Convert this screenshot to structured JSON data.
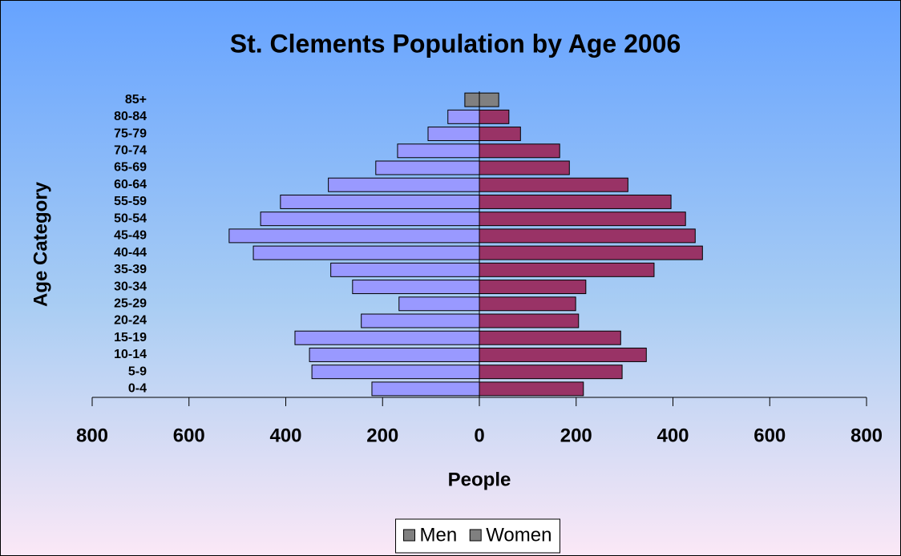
{
  "chart_data": {
    "type": "pyramid",
    "title": "St. Clements Population by Age 2006",
    "x_label": "People",
    "y_label": "Age Category",
    "categories": [
      "0-4",
      "5-9",
      "10-14",
      "15-19",
      "20-24",
      "25-29",
      "30-34",
      "35-39",
      "40-44",
      "45-49",
      "50-54",
      "55-59",
      "60-64",
      "65-69",
      "70-74",
      "75-79",
      "80-84",
      "85+"
    ],
    "series": [
      {
        "name": "Men",
        "color": "#9999ff",
        "colors": [
          "#9999ff",
          "#9999ff",
          "#9999ff",
          "#9999ff",
          "#9999ff",
          "#9999ff",
          "#9999ff",
          "#9999ff",
          "#9999ff",
          "#9999ff",
          "#9999ff",
          "#9999ff",
          "#9999ff",
          "#9999ff",
          "#9999ff",
          "#9999ff",
          "#9999ff",
          "#808080"
        ],
        "values": [
          -222,
          -346,
          -351,
          -381,
          -244,
          -166,
          -262,
          -307,
          -467,
          -517,
          -452,
          -411,
          -312,
          -214,
          -169,
          -106,
          -65,
          -30
        ]
      },
      {
        "name": "Women",
        "color": "#993366",
        "colors": [
          "#993366",
          "#993366",
          "#993366",
          "#993366",
          "#993366",
          "#993366",
          "#993366",
          "#993366",
          "#993366",
          "#993366",
          "#993366",
          "#993366",
          "#993366",
          "#993366",
          "#993366",
          "#993366",
          "#993366",
          "#808080"
        ],
        "values": [
          215,
          295,
          345,
          292,
          205,
          199,
          220,
          361,
          461,
          446,
          426,
          396,
          307,
          186,
          166,
          85,
          61,
          40
        ]
      }
    ],
    "xlim": [
      -800,
      800
    ],
    "xticks": [
      {
        "value": -800,
        "label": "800"
      },
      {
        "value": -600,
        "label": "600"
      },
      {
        "value": -400,
        "label": "400"
      },
      {
        "value": -200,
        "label": "200"
      },
      0,
      200,
      400,
      600,
      800
    ],
    "legend": "bottom"
  }
}
